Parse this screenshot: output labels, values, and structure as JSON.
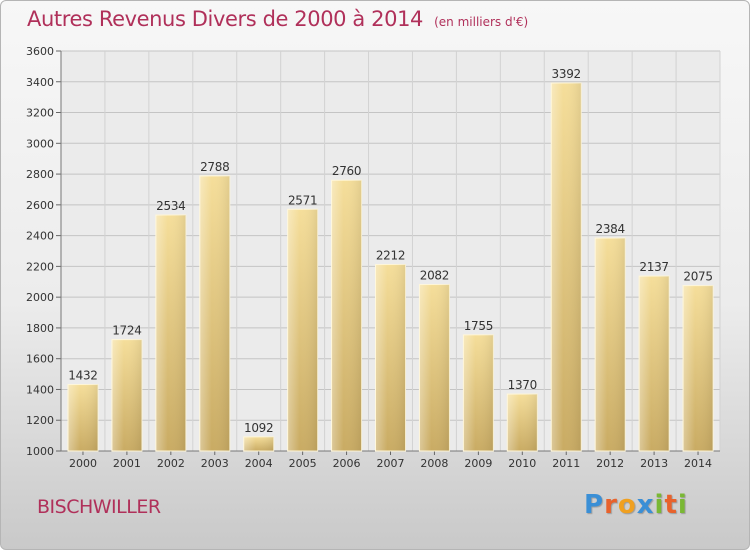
{
  "title": "Autres Revenus Divers de 2000 à 2014",
  "subtitle": "(en milliers d'€)",
  "city": "BISCHWILLER",
  "logo": {
    "letters": [
      {
        "char": "P",
        "color": "#3a8fd6"
      },
      {
        "char": "r",
        "color": "#e8622c"
      },
      {
        "char": "o",
        "color": "#f0a020"
      },
      {
        "char": "x",
        "color": "#3a8fd6"
      },
      {
        "char": "i",
        "color": "#7ab834"
      },
      {
        "char": "t",
        "color": "#e8622c"
      },
      {
        "char": "i",
        "color": "#7ab834"
      }
    ]
  },
  "colors": {
    "title": "#b0305a",
    "bar_top": "#f5de9a",
    "bar_bottom": "#c9ab63",
    "grid": "#bdbdbd",
    "text": "#333333"
  },
  "chart_data": {
    "type": "bar",
    "categories": [
      "2000",
      "2001",
      "2002",
      "2003",
      "2004",
      "2005",
      "2006",
      "2007",
      "2008",
      "2009",
      "2010",
      "2011",
      "2012",
      "2013",
      "2014"
    ],
    "values": [
      1432,
      1724,
      2534,
      2788,
      1092,
      2571,
      2760,
      2212,
      2082,
      1755,
      1370,
      3392,
      2384,
      2137,
      2075
    ],
    "ylim": [
      1000,
      3600
    ],
    "yticks": [
      1000,
      1200,
      1400,
      1600,
      1800,
      2000,
      2200,
      2400,
      2600,
      2800,
      3000,
      3200,
      3400,
      3600
    ],
    "grid": true,
    "data_labels": true
  }
}
